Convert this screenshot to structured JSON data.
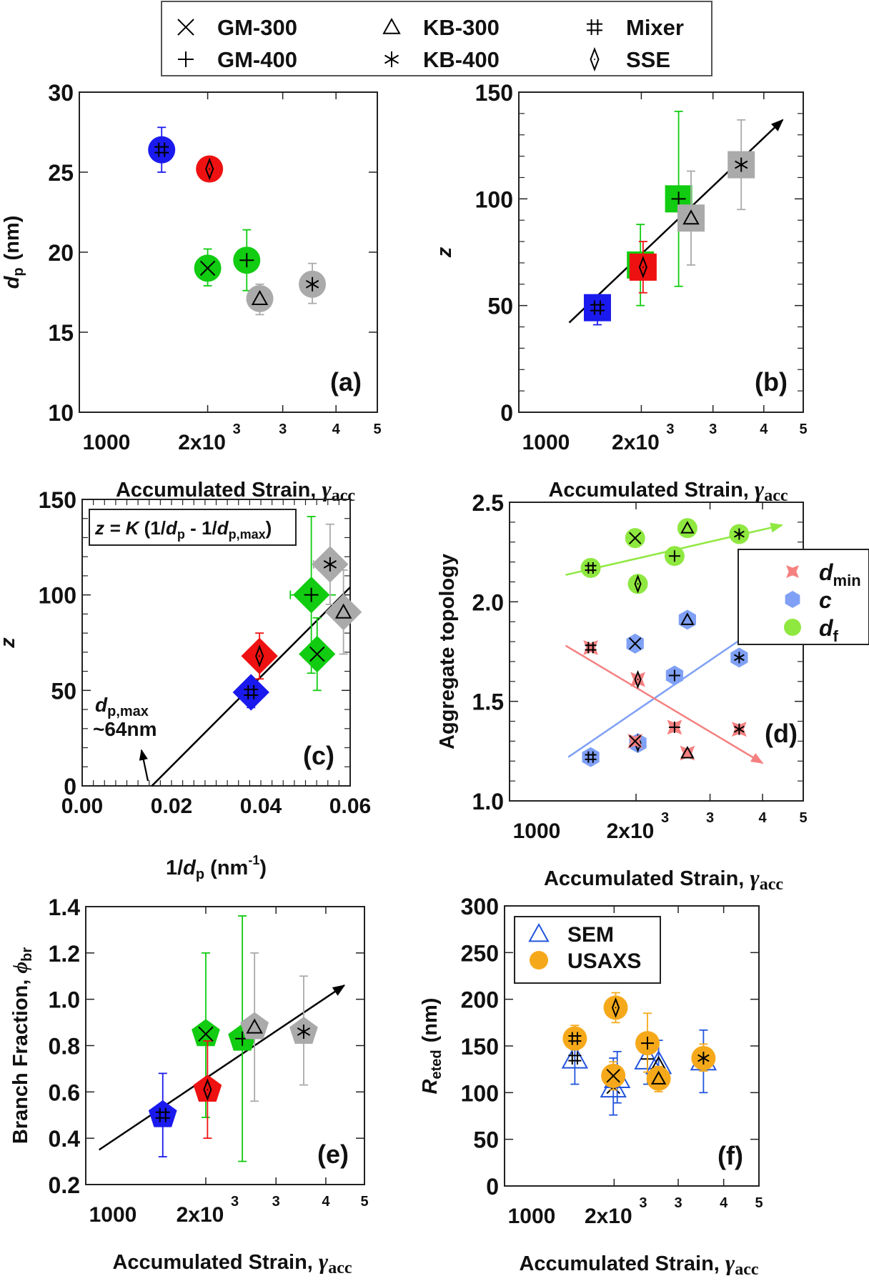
{
  "figure_legend": {
    "items": [
      {
        "label": "GM-300",
        "marker": "x-mark"
      },
      {
        "label": "GM-400",
        "marker": "plus-mark"
      },
      {
        "label": "KB-300",
        "marker": "triangle-mark"
      },
      {
        "label": "KB-400",
        "marker": "asterisk-mark"
      },
      {
        "label": "Mixer",
        "marker": "hash-mark"
      },
      {
        "label": "SSE",
        "marker": "diamond-mark"
      }
    ]
  },
  "colors": {
    "Mixer": "#1a1aee",
    "SSE": "#ee1111",
    "GM": "#11cc11",
    "KB": "#aaaaaa",
    "d_min": "#f58080",
    "c": "#7fa0f5",
    "d_f": "#8fe840",
    "SEM": "#2255dd",
    "USAXS": "#f5a91a"
  },
  "common": {
    "strain_xlabel": "Accumulated Strain, ",
    "strain_symbol": "γ",
    "strain_sub": "acc",
    "log_ticks": [
      {
        "value": 1000,
        "label": "1000"
      },
      {
        "value": 2000,
        "label": "2x10"
      },
      {
        "value": 3000,
        "label": "3"
      },
      {
        "value": 4000,
        "label": "4"
      },
      {
        "value": 5000,
        "label": "5"
      }
    ],
    "exp_label": "3"
  },
  "chart_data": [
    {
      "id": "a",
      "panel_label": "(a)",
      "type": "scatter",
      "xscale": "log",
      "xlim": [
        1000,
        5000
      ],
      "ylim": [
        10,
        30
      ],
      "yticks": [
        10,
        15,
        20,
        25,
        30
      ],
      "ylabel": "d",
      "ylabel_sub": "p",
      "ylabel_unit": "(nm)",
      "marker_shape": "circle",
      "points": [
        {
          "sample": "Mixer",
          "x": 1560,
          "y": 26.4,
          "err": [
            25.0,
            27.8
          ],
          "color": "Mixer"
        },
        {
          "sample": "SSE",
          "x": 2020,
          "y": 25.2,
          "err": null,
          "color": "SSE"
        },
        {
          "sample": "GM-300",
          "x": 2000,
          "y": 19.0,
          "err": [
            17.9,
            20.2
          ],
          "color": "GM"
        },
        {
          "sample": "GM-400",
          "x": 2470,
          "y": 19.5,
          "err": [
            17.6,
            21.4
          ],
          "color": "GM"
        },
        {
          "sample": "KB-300",
          "x": 2650,
          "y": 17.1,
          "err": [
            16.1,
            18.0
          ],
          "color": "KB"
        },
        {
          "sample": "KB-400",
          "x": 3520,
          "y": 18.0,
          "err": [
            16.8,
            19.3
          ],
          "color": "KB"
        }
      ]
    },
    {
      "id": "b",
      "panel_label": "(b)",
      "type": "scatter",
      "xscale": "log",
      "xlim": [
        1000,
        5000
      ],
      "ylim": [
        0,
        150
      ],
      "yticks": [
        0,
        50,
        100,
        150
      ],
      "ylabel": "z",
      "marker_shape": "square",
      "trend": {
        "x": [
          1330,
          4450
        ],
        "y": [
          42,
          137
        ],
        "color": "#000000"
      },
      "points": [
        {
          "sample": "Mixer",
          "x": 1560,
          "y": 49,
          "err": [
            41,
            55
          ],
          "color": "Mixer"
        },
        {
          "sample": "GM-300",
          "x": 1990,
          "y": 69,
          "err": [
            50,
            88
          ],
          "color": "GM"
        },
        {
          "sample": "SSE",
          "x": 2020,
          "y": 68,
          "err": [
            56,
            80
          ],
          "color": "SSE"
        },
        {
          "sample": "GM-400",
          "x": 2470,
          "y": 100,
          "err": [
            59,
            141
          ],
          "color": "GM"
        },
        {
          "sample": "KB-300",
          "x": 2650,
          "y": 91,
          "err": [
            69,
            113
          ],
          "color": "KB"
        },
        {
          "sample": "KB-400",
          "x": 3520,
          "y": 116,
          "err": [
            95,
            137
          ],
          "color": "KB"
        }
      ]
    },
    {
      "id": "c",
      "panel_label": "(c)",
      "type": "scatter",
      "xscale": "linear",
      "xlim": [
        0,
        0.06
      ],
      "ylim": [
        0,
        150
      ],
      "xticks": [
        0,
        0.02,
        0.04,
        0.06
      ],
      "xtick_labels": [
        "0.00",
        "0.02",
        "0.04",
        "0.06"
      ],
      "yticks": [
        0,
        50,
        100,
        150
      ],
      "xlabel_pre": "1/",
      "xlabel_d": "d",
      "xlabel_sub": "p",
      "xlabel_unit": " (nm",
      "xlabel_sup": "-1",
      "xlabel_close": ")",
      "ylabel": "z",
      "marker_shape": "diamond",
      "equation": {
        "z": "z = ",
        "K": "K",
        "body1": " (1/",
        "d": "d",
        "sub1": "p",
        "mid": " - 1/",
        "d2": "d",
        "sub2": "p,max",
        "end": ")"
      },
      "annotation": {
        "d": "d",
        "sub": "p,max",
        "line2": "~64nm",
        "target_x": 0.0156
      },
      "trend": {
        "x": [
          0.0156,
          0.06
        ],
        "y": [
          0,
          104
        ],
        "color": "#000000"
      },
      "points": [
        {
          "sample": "Mixer",
          "x": 0.0378,
          "y": 49,
          "yerr": [
            41,
            55
          ],
          "xerr": null,
          "color": "Mixer"
        },
        {
          "sample": "SSE",
          "x": 0.0397,
          "y": 68,
          "yerr": [
            56,
            80
          ],
          "xerr": null,
          "color": "SSE"
        },
        {
          "sample": "GM-400",
          "x": 0.0513,
          "y": 100,
          "yerr": [
            59,
            141
          ],
          "xerr": [
            0.0466,
            0.0568
          ],
          "color": "GM"
        },
        {
          "sample": "GM-300",
          "x": 0.0526,
          "y": 69,
          "yerr": [
            50,
            88
          ],
          "xerr": [
            0.0495,
            0.0558
          ],
          "color": "GM"
        },
        {
          "sample": "KB-400",
          "x": 0.0555,
          "y": 116,
          "yerr": [
            95,
            137
          ],
          "xerr": [
            0.0518,
            0.0595
          ],
          "color": "KB"
        },
        {
          "sample": "KB-300",
          "x": 0.0585,
          "y": 91,
          "yerr": [
            69,
            113
          ],
          "xerr": [
            0.0555,
            0.062
          ],
          "color": "KB"
        }
      ]
    },
    {
      "id": "d",
      "panel_label": "(d)",
      "type": "scatter",
      "xscale": "log",
      "xlim": [
        1000,
        5000
      ],
      "ylim": [
        1.0,
        2.5
      ],
      "yticks": [
        1.0,
        1.5,
        2.0,
        2.5
      ],
      "ytick_labels": [
        "1.0",
        "1.5",
        "2.0",
        "2.5"
      ],
      "ylabel": "Aggregate topology",
      "legend": [
        {
          "name": "d_min",
          "label": "d",
          "sub": "min",
          "shape": "star4",
          "color": "d_min"
        },
        {
          "name": "c",
          "label": "c",
          "sub": "",
          "shape": "hexagon",
          "color": "c"
        },
        {
          "name": "d_f",
          "label": "d",
          "sub": "f",
          "shape": "circle",
          "color": "d_f"
        }
      ],
      "series": [
        {
          "name": "d_f",
          "shape": "circle",
          "color": "d_f",
          "trend": {
            "x": [
              1360,
              4450
            ],
            "y": [
              2.135,
              2.385
            ]
          },
          "points": [
            {
              "sample": "Mixer",
              "x": 1560,
              "y": 2.17
            },
            {
              "sample": "GM-300",
              "x": 1990,
              "y": 2.32
            },
            {
              "sample": "SSE",
              "x": 2020,
              "y": 2.09
            },
            {
              "sample": "GM-400",
              "x": 2470,
              "y": 2.23
            },
            {
              "sample": "KB-300",
              "x": 2650,
              "y": 2.37
            },
            {
              "sample": "KB-400",
              "x": 3520,
              "y": 2.34
            }
          ]
        },
        {
          "name": "c",
          "shape": "hexagon",
          "color": "c",
          "trend": {
            "x": [
              1380,
              3900
            ],
            "y": [
              1.22,
              1.87
            ]
          },
          "points": [
            {
              "sample": "Mixer",
              "x": 1560,
              "y": 1.22
            },
            {
              "sample": "GM-300",
              "x": 1990,
              "y": 1.79
            },
            {
              "sample": "SSE",
              "x": 2020,
              "y": 1.29
            },
            {
              "sample": "GM-400",
              "x": 2470,
              "y": 1.63
            },
            {
              "sample": "KB-300",
              "x": 2650,
              "y": 1.91
            },
            {
              "sample": "KB-400",
              "x": 3520,
              "y": 1.72
            }
          ]
        },
        {
          "name": "d_min",
          "shape": "star4",
          "color": "d_min",
          "trend": {
            "x": [
              1360,
              4000
            ],
            "y": [
              1.78,
              1.19
            ]
          },
          "points": [
            {
              "sample": "Mixer",
              "x": 1560,
              "y": 1.77
            },
            {
              "sample": "GM-300",
              "x": 1990,
              "y": 1.3
            },
            {
              "sample": "SSE",
              "x": 2020,
              "y": 1.61
            },
            {
              "sample": "GM-400",
              "x": 2470,
              "y": 1.37
            },
            {
              "sample": "KB-300",
              "x": 2650,
              "y": 1.24
            },
            {
              "sample": "KB-400",
              "x": 3520,
              "y": 1.36
            }
          ]
        }
      ]
    },
    {
      "id": "e",
      "panel_label": "(e)",
      "type": "scatter",
      "xscale": "log",
      "xlim": [
        1000,
        5000
      ],
      "ylim": [
        0.2,
        1.4
      ],
      "yticks": [
        0.2,
        0.4,
        0.6,
        0.8,
        1.0,
        1.2,
        1.4
      ],
      "ytick_labels": [
        "0.2",
        "0.4",
        "0.6",
        "0.8",
        "1.0",
        "1.2",
        "1.4"
      ],
      "ylabel": "Branch Fraction, ",
      "ylabel_symbol": "ϕ",
      "ylabel_sub": "br",
      "marker_shape": "pentagon",
      "trend": {
        "x": [
          1080,
          4450
        ],
        "y": [
          0.35,
          1.06
        ],
        "color": "#000000"
      },
      "points": [
        {
          "sample": "Mixer",
          "x": 1560,
          "y": 0.5,
          "err": [
            0.32,
            0.68
          ],
          "color": "Mixer"
        },
        {
          "sample": "GM-300",
          "x": 2000,
          "y": 0.85,
          "err": [
            0.49,
            1.2
          ],
          "color": "GM"
        },
        {
          "sample": "SSE",
          "x": 2020,
          "y": 0.61,
          "err": [
            0.4,
            0.82
          ],
          "color": "SSE"
        },
        {
          "sample": "GM-400",
          "x": 2470,
          "y": 0.83,
          "err": [
            0.3,
            1.36
          ],
          "color": "GM"
        },
        {
          "sample": "KB-300",
          "x": 2650,
          "y": 0.88,
          "err": [
            0.56,
            1.2
          ],
          "color": "KB"
        },
        {
          "sample": "KB-400",
          "x": 3520,
          "y": 0.86,
          "err": [
            0.63,
            1.1
          ],
          "color": "KB"
        }
      ]
    },
    {
      "id": "f",
      "panel_label": "(f)",
      "type": "scatter",
      "xscale": "log",
      "xlim": [
        1000,
        5000
      ],
      "ylim": [
        0,
        300
      ],
      "yticks": [
        0,
        50,
        100,
        150,
        200,
        250,
        300
      ],
      "ylabel": "R",
      "ylabel_sub": "eted",
      "ylabel_unit": "(nm)",
      "legend": [
        {
          "name": "SEM",
          "label": "SEM",
          "shape": "open-triangle",
          "color": "SEM"
        },
        {
          "name": "USAXS",
          "label": "USAXS",
          "shape": "circle",
          "color": "USAXS"
        }
      ],
      "series": [
        {
          "name": "SEM",
          "shape": "open-triangle",
          "color": "SEM",
          "points": [
            {
              "sample": "Mixer",
              "x": 1560,
              "y": 137,
              "err": [
                109,
                146
              ]
            },
            {
              "sample": "GM-300",
              "x": 1990,
              "y": 106,
              "err": [
                76,
                137
              ]
            },
            {
              "sample": "SSE",
              "x": 2040,
              "y": 116,
              "err": [
                89,
                144
              ]
            },
            {
              "sample": "GM-400",
              "x": 2470,
              "y": 136,
              "err": [
                109,
                146
              ]
            },
            {
              "sample": "KB-300",
              "x": 2650,
              "y": 131,
              "err": [
                105,
                156
              ]
            },
            {
              "sample": "KB-400",
              "x": 3520,
              "y": 135,
              "err": [
                100,
                167
              ]
            }
          ]
        },
        {
          "name": "USAXS",
          "shape": "circle",
          "color": "USAXS",
          "points": [
            {
              "sample": "Mixer",
              "x": 1560,
              "y": 158,
              "err": [
                146,
                172
              ]
            },
            {
              "sample": "SSE",
              "x": 2020,
              "y": 191,
              "err": [
                175,
                207
              ]
            },
            {
              "sample": "GM-300",
              "x": 1990,
              "y": 118,
              "err": [
                103,
                133
              ]
            },
            {
              "sample": "GM-400",
              "x": 2470,
              "y": 153,
              "err": [
                122,
                185
              ]
            },
            {
              "sample": "KB-300",
              "x": 2650,
              "y": 115,
              "err": [
                101,
                128
              ]
            },
            {
              "sample": "KB-400",
              "x": 3520,
              "y": 137,
              "err": [
                123,
                152
              ]
            }
          ]
        }
      ]
    }
  ]
}
